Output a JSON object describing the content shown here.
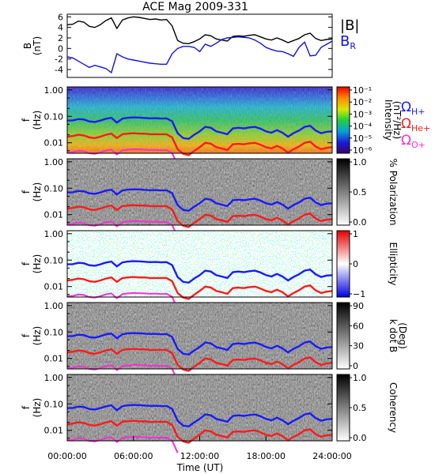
{
  "title": "ACE Mag 2009-331",
  "x_axis": {
    "label": "Time (UT)",
    "ticks": [
      "00:00:00",
      "06:00:00",
      "12:00:00",
      "18:00:00",
      "24:00:00"
    ],
    "range_hours": [
      0,
      24
    ]
  },
  "colors": {
    "B_total": "#000000",
    "B_R": "#1010e0",
    "Omega_H": "#1a1aff",
    "Omega_He": "#ff1a1a",
    "Omega_O": "#ff2bd6"
  },
  "legend_top": {
    "total": "|B|",
    "radial": "B",
    "radial_sub": "R"
  },
  "legend_gyro": [
    {
      "symbol": "Ω",
      "sub": "H+",
      "color": "#1a1aff"
    },
    {
      "symbol": "Ω",
      "sub": "He+",
      "color": "#ff1a1a"
    },
    {
      "symbol": "Ω",
      "sub": "O+",
      "color": "#ff2bd6"
    }
  ],
  "freq_ylabel": {
    "main": "f",
    "unit": "(Hz)"
  },
  "freq_ticks": [
    "1.00",
    "0.10",
    "0.01"
  ],
  "panels": [
    {
      "id": "intensity",
      "bar_title": "Intensity",
      "bar_unit": "(nT²/Hz)",
      "bar_ticks": [
        "10⁻¹",
        "10⁻²",
        "10⁻³",
        "10⁻⁴",
        "10⁻⁵",
        "10⁻⁶"
      ]
    },
    {
      "id": "polarization",
      "bar_title": "% Polarization",
      "bar_unit": "",
      "bar_ticks": [
        "1.0",
        "0.5",
        "0.0"
      ]
    },
    {
      "id": "ellipticity",
      "bar_title": "Ellipticity",
      "bar_unit": "",
      "bar_ticks": [
        "1",
        "0",
        "−1"
      ]
    },
    {
      "id": "kdotb",
      "bar_title": "k dot B",
      "bar_unit": "(Deg)",
      "bar_ticks": [
        "90",
        "60",
        "30",
        "0"
      ]
    },
    {
      "id": "coherency",
      "bar_title": "Coherency",
      "bar_unit": "",
      "bar_ticks": [
        "1.0",
        "0.5",
        "0.0"
      ]
    }
  ],
  "chart_data": {
    "type": "line",
    "title": "ACE Mag 2009-331",
    "xlabel": "Time (UT)",
    "x_unit": "hours UT",
    "b_panel": {
      "ylabel": "B",
      "yunit": "(nT)",
      "ylim": [
        -5.5,
        6.5
      ],
      "yticks": [
        -4,
        -2,
        0,
        2,
        4,
        6
      ],
      "series": [
        {
          "name": "|B|",
          "x": [
            0,
            0.5,
            1,
            1.5,
            2,
            2.5,
            3,
            3.5,
            4,
            4.5,
            5,
            5.5,
            6,
            6.5,
            7,
            7.5,
            8,
            8.5,
            9,
            9.5,
            10,
            10.5,
            11,
            11.5,
            12,
            12.5,
            13,
            13.5,
            14,
            14.5,
            15,
            15.5,
            16,
            16.5,
            17,
            17.5,
            18,
            18.5,
            19,
            19.5,
            20,
            20.5,
            21,
            21.5,
            22,
            22.5,
            23,
            23.5,
            24
          ],
          "y": [
            4.5,
            4.6,
            5.2,
            5.0,
            4.2,
            4.0,
            4.5,
            5.3,
            5.8,
            3.8,
            5.4,
            5.8,
            6.0,
            5.9,
            5.7,
            5.5,
            5.6,
            5.4,
            5.5,
            4.3,
            1.5,
            1.0,
            0.9,
            1.3,
            1.8,
            2.6,
            2.4,
            1.8,
            1.6,
            1.4,
            2.3,
            2.4,
            2.3,
            2.5,
            2.6,
            2.2,
            1.8,
            1.6,
            2.0,
            1.6,
            1.1,
            1.5,
            1.9,
            2.6,
            2.9,
            1.9,
            1.5,
            1.7,
            1.8
          ]
        },
        {
          "name": "B_R",
          "x": [
            0,
            0.5,
            1,
            1.5,
            2,
            2.5,
            3,
            3.5,
            4,
            4.5,
            5,
            5.5,
            6,
            6.5,
            7,
            7.5,
            8,
            8.5,
            9,
            9.5,
            10,
            10.5,
            11,
            11.5,
            12,
            12.5,
            13,
            13.5,
            14,
            14.5,
            15,
            15.5,
            16,
            16.5,
            17,
            17.5,
            18,
            18.5,
            19,
            19.5,
            20,
            20.5,
            21,
            21.5,
            22,
            22.5,
            23,
            23.5,
            24
          ],
          "y": [
            -1.6,
            -1.8,
            -2.4,
            -3.0,
            -3.6,
            -3.2,
            -3.5,
            -3.8,
            -4.6,
            -1.0,
            -1.6,
            -2.0,
            -2.2,
            -2.4,
            -2.6,
            -2.8,
            -2.9,
            -3.0,
            -3.0,
            -1.0,
            0.0,
            0.4,
            0.4,
            0.2,
            -0.6,
            0.8,
            0.4,
            1.0,
            1.7,
            2.0,
            2.1,
            2.2,
            2.1,
            2.0,
            1.6,
            1.0,
            0.2,
            -0.2,
            -0.5,
            -0.6,
            -1.0,
            -1.5,
            0.2,
            1.2,
            -1.4,
            -1.3,
            0.2,
            0.8,
            1.4
          ]
        }
      ]
    },
    "spectrogram_panels": {
      "ylabel": "f (Hz)",
      "yscale": "log",
      "ylim": [
        0.004,
        1.3
      ],
      "series": [
        {
          "name": "ΩH+",
          "x": [
            0,
            0.5,
            1,
            1.5,
            2,
            2.5,
            3,
            3.5,
            4,
            4.5,
            5,
            5.5,
            6,
            6.5,
            7,
            7.5,
            8,
            8.5,
            9,
            9.5,
            10,
            10.5,
            11,
            11.5,
            12,
            12.5,
            13,
            13.5,
            14,
            14.5,
            15,
            15.5,
            16,
            16.5,
            17,
            17.5,
            18,
            18.5,
            19,
            19.5,
            20,
            20.5,
            21,
            21.5,
            22,
            22.5,
            23,
            23.5,
            24
          ],
          "y": [
            0.069,
            0.07,
            0.079,
            0.076,
            0.064,
            0.061,
            0.069,
            0.081,
            0.088,
            0.058,
            0.082,
            0.088,
            0.091,
            0.09,
            0.087,
            0.084,
            0.085,
            0.082,
            0.084,
            0.065,
            0.023,
            0.015,
            0.014,
            0.02,
            0.027,
            0.04,
            0.037,
            0.027,
            0.024,
            0.021,
            0.035,
            0.037,
            0.035,
            0.038,
            0.04,
            0.034,
            0.027,
            0.024,
            0.03,
            0.024,
            0.017,
            0.023,
            0.029,
            0.04,
            0.044,
            0.029,
            0.023,
            0.026,
            0.027
          ]
        },
        {
          "name": "ΩHe+",
          "x": [
            0,
            0.5,
            1,
            1.5,
            2,
            2.5,
            3,
            3.5,
            4,
            4.5,
            5,
            5.5,
            6,
            6.5,
            7,
            7.5,
            8,
            8.5,
            9,
            9.5,
            10,
            10.5,
            11,
            11.5,
            12,
            12.5,
            13,
            13.5,
            14,
            14.5,
            15,
            15.5,
            16,
            16.5,
            17,
            17.5,
            18,
            18.5,
            19,
            19.5,
            20,
            20.5,
            21,
            21.5,
            22,
            22.5,
            23,
            23.5,
            24
          ],
          "y": [
            0.017,
            0.018,
            0.02,
            0.019,
            0.016,
            0.015,
            0.017,
            0.02,
            0.022,
            0.015,
            0.021,
            0.022,
            0.023,
            0.022,
            0.022,
            0.021,
            0.021,
            0.021,
            0.021,
            0.016,
            0.0057,
            0.0038,
            0.0034,
            0.0049,
            0.0068,
            0.0099,
            0.0092,
            0.0068,
            0.0061,
            0.0053,
            0.0087,
            0.0091,
            0.0087,
            0.0095,
            0.0099,
            0.0084,
            0.0068,
            0.0061,
            0.0076,
            0.0061,
            0.0042,
            0.0057,
            0.0072,
            0.0099,
            0.011,
            0.0072,
            0.0057,
            0.0064,
            0.0068
          ]
        },
        {
          "name": "ΩO+",
          "x": [
            0,
            0.5,
            1,
            1.5,
            2,
            2.5,
            3,
            3.5,
            4,
            4.5,
            5,
            5.5,
            6,
            6.5,
            7,
            7.5,
            8,
            8.5,
            9,
            9.5,
            10
          ],
          "y": [
            0.0043,
            0.0044,
            0.005,
            0.0048,
            0.004,
            0.0038,
            0.0043,
            0.0051,
            0.0055,
            0.0036,
            0.0052,
            0.0055,
            0.0057,
            0.0056,
            0.0055,
            0.0053,
            0.0054,
            0.0052,
            0.0053,
            0.0041,
            0.0014
          ]
        }
      ]
    }
  }
}
